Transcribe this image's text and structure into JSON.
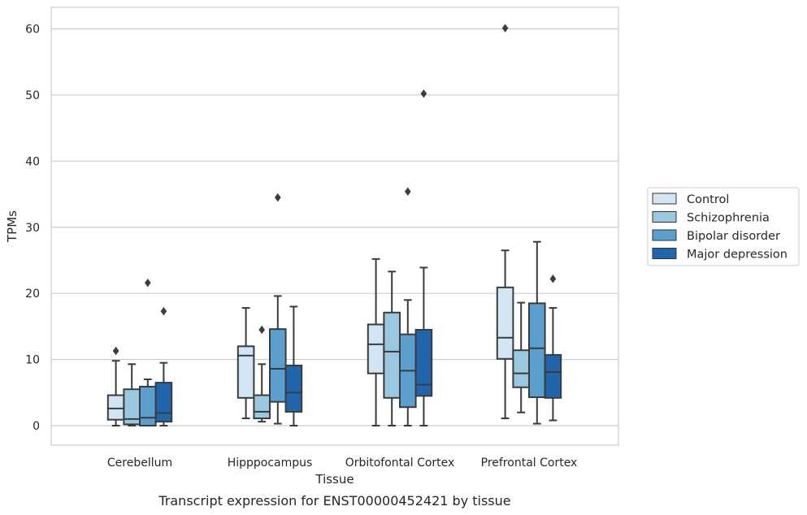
{
  "chart_data": {
    "type": "box",
    "title": "",
    "caption": "Transcript expression for ENST00000452421 by tissue",
    "xlabel": "Tissue",
    "ylabel": "TPMs",
    "ylim": [
      -3,
      63
    ],
    "yticks": [
      0,
      10,
      20,
      30,
      40,
      50,
      60
    ],
    "grid": "horizontal",
    "legend_position": "right",
    "categories": [
      "Cerebellum",
      "Hipppocampus",
      "Orbitofontal Cortex",
      "Prefrontal Cortex"
    ],
    "series": [
      {
        "name": "Control",
        "color": "#d3e4f3",
        "boxes": [
          {
            "whisker_low": 0.0,
            "q1": 0.9,
            "median": 2.6,
            "q3": 4.6,
            "whisker_high": 9.8,
            "outliers": [
              11.3
            ]
          },
          {
            "whisker_low": 1.1,
            "q1": 4.2,
            "median": 10.6,
            "q3": 12.0,
            "whisker_high": 17.8,
            "outliers": []
          },
          {
            "whisker_low": 0.0,
            "q1": 7.9,
            "median": 12.3,
            "q3": 15.3,
            "whisker_high": 25.2,
            "outliers": []
          },
          {
            "whisker_low": 1.1,
            "q1": 10.1,
            "median": 13.3,
            "q3": 20.9,
            "whisker_high": 26.5,
            "outliers": [
              60.1
            ]
          }
        ]
      },
      {
        "name": "Schizophrenia",
        "color": "#9ac8e0",
        "boxes": [
          {
            "whisker_low": 0.0,
            "q1": 0.2,
            "median": 1.0,
            "q3": 5.5,
            "whisker_high": 9.3,
            "outliers": []
          },
          {
            "whisker_low": 0.6,
            "q1": 1.1,
            "median": 2.1,
            "q3": 4.6,
            "whisker_high": 9.3,
            "outliers": [
              14.5
            ]
          },
          {
            "whisker_low": 0.0,
            "q1": 4.2,
            "median": 11.2,
            "q3": 17.1,
            "whisker_high": 23.3,
            "outliers": []
          },
          {
            "whisker_low": 2.0,
            "q1": 5.8,
            "median": 7.9,
            "q3": 11.4,
            "whisker_high": 18.6,
            "outliers": []
          }
        ]
      },
      {
        "name": "Bipolar disorder",
        "color": "#5a9fcd",
        "boxes": [
          {
            "whisker_low": 0.0,
            "q1": 0.0,
            "median": 1.2,
            "q3": 5.9,
            "whisker_high": 7.0,
            "outliers": [
              21.6
            ]
          },
          {
            "whisker_low": 0.3,
            "q1": 3.6,
            "median": 8.6,
            "q3": 14.6,
            "whisker_high": 19.6,
            "outliers": [
              34.5
            ]
          },
          {
            "whisker_low": 0.0,
            "q1": 2.8,
            "median": 8.3,
            "q3": 13.8,
            "whisker_high": 19.0,
            "outliers": [
              35.4
            ]
          },
          {
            "whisker_low": 0.3,
            "q1": 4.3,
            "median": 11.7,
            "q3": 18.5,
            "whisker_high": 27.8,
            "outliers": []
          }
        ]
      },
      {
        "name": "Major depression",
        "color": "#2166ac",
        "boxes": [
          {
            "whisker_low": 0.0,
            "q1": 0.6,
            "median": 1.9,
            "q3": 6.5,
            "whisker_high": 9.5,
            "outliers": [
              17.3
            ]
          },
          {
            "whisker_low": 0.0,
            "q1": 2.1,
            "median": 5.0,
            "q3": 9.1,
            "whisker_high": 18.0,
            "outliers": []
          },
          {
            "whisker_low": 0.0,
            "q1": 4.5,
            "median": 6.2,
            "q3": 14.5,
            "whisker_high": 23.9,
            "outliers": [
              50.2
            ]
          },
          {
            "whisker_low": 0.8,
            "q1": 4.2,
            "median": 8.1,
            "q3": 10.7,
            "whisker_high": 17.8,
            "outliers": [
              22.2
            ]
          }
        ]
      }
    ]
  }
}
